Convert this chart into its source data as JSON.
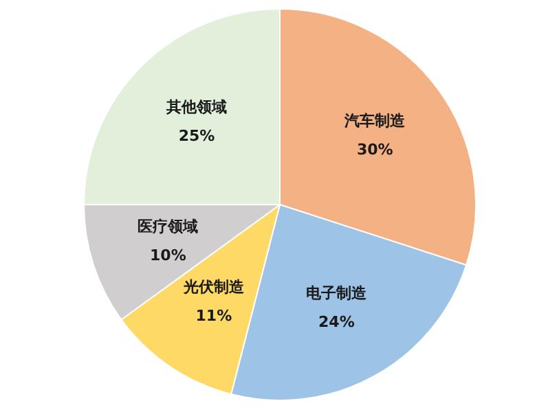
{
  "chart_data": {
    "type": "pie",
    "categories": [
      "汽车制造",
      "电子制造",
      "光伏制造",
      "医疗领域",
      "其他领域"
    ],
    "values": [
      30,
      24,
      11,
      10,
      25
    ],
    "colors": [
      "#f4b183",
      "#9dc3e6",
      "#ffd966",
      "#d0cece",
      "#e2efda"
    ],
    "value_labels": [
      "30%",
      "24%",
      "11%",
      "10%",
      "25%"
    ],
    "legend": false
  }
}
